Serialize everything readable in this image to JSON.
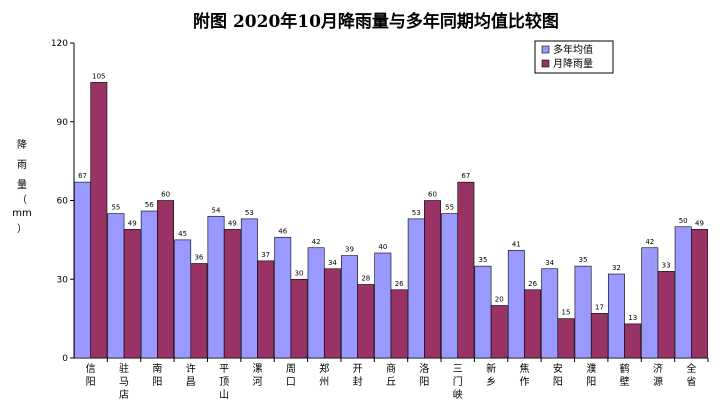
{
  "chart_data": {
    "type": "bar",
    "title": "附图      2020年10月降雨量与多年同期均值比较图",
    "ylabel": [
      "降",
      "雨",
      "量",
      "（",
      "mm",
      "）"
    ],
    "ylim": [
      0,
      120
    ],
    "yticks": [
      0,
      30,
      60,
      90,
      120
    ],
    "legend_position": "top-right",
    "categories": [
      "信阳",
      "驻马店",
      "南阳",
      "许昌",
      "平顶山",
      "漯河",
      "周口",
      "郑州",
      "开封",
      "商丘",
      "洛阳",
      "三门峡",
      "新乡",
      "焦作",
      "安阳",
      "濮阳",
      "鹤壁",
      "济源",
      "全省"
    ],
    "series": [
      {
        "name": "多年均值",
        "color": "#9999ff",
        "values": [
          67,
          55,
          56,
          45,
          54,
          53,
          46,
          42,
          39,
          40,
          53,
          55,
          35,
          41,
          34,
          35,
          32,
          42,
          50
        ]
      },
      {
        "name": "月降雨量",
        "color": "#993366",
        "values": [
          105,
          49,
          60,
          36,
          49,
          37,
          30,
          34,
          28,
          26,
          60,
          67,
          20,
          26,
          15,
          17,
          13,
          33,
          49
        ]
      }
    ]
  }
}
